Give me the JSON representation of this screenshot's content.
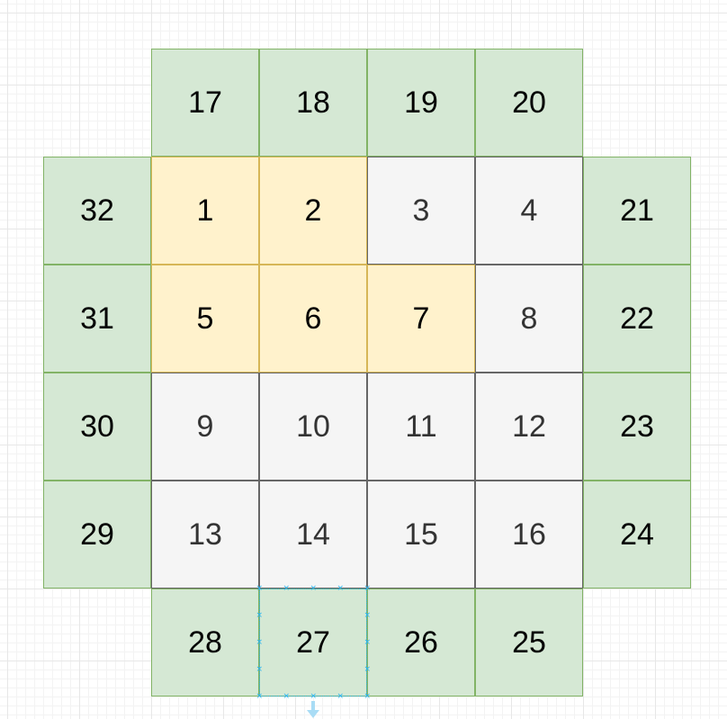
{
  "grid": {
    "cells": [
      {
        "label": "17",
        "kind": "perimeter"
      },
      {
        "label": "18",
        "kind": "perimeter"
      },
      {
        "label": "19",
        "kind": "perimeter"
      },
      {
        "label": "20",
        "kind": "perimeter"
      },
      {
        "label": "32",
        "kind": "perimeter"
      },
      {
        "label": "1",
        "kind": "highlight"
      },
      {
        "label": "2",
        "kind": "highlight"
      },
      {
        "label": "3",
        "kind": "plain"
      },
      {
        "label": "4",
        "kind": "plain"
      },
      {
        "label": "21",
        "kind": "perimeter"
      },
      {
        "label": "31",
        "kind": "perimeter"
      },
      {
        "label": "5",
        "kind": "highlight"
      },
      {
        "label": "6",
        "kind": "highlight"
      },
      {
        "label": "7",
        "kind": "highlight"
      },
      {
        "label": "8",
        "kind": "plain"
      },
      {
        "label": "22",
        "kind": "perimeter"
      },
      {
        "label": "30",
        "kind": "perimeter"
      },
      {
        "label": "9",
        "kind": "plain"
      },
      {
        "label": "10",
        "kind": "plain"
      },
      {
        "label": "11",
        "kind": "plain"
      },
      {
        "label": "12",
        "kind": "plain"
      },
      {
        "label": "23",
        "kind": "perimeter"
      },
      {
        "label": "29",
        "kind": "perimeter"
      },
      {
        "label": "13",
        "kind": "plain"
      },
      {
        "label": "14",
        "kind": "plain"
      },
      {
        "label": "15",
        "kind": "plain"
      },
      {
        "label": "16",
        "kind": "plain"
      },
      {
        "label": "24",
        "kind": "perimeter"
      },
      {
        "label": "28",
        "kind": "perimeter"
      },
      {
        "label": "27",
        "kind": "perimeter",
        "selected": true
      },
      {
        "label": "26",
        "kind": "perimeter"
      },
      {
        "label": "25",
        "kind": "perimeter"
      }
    ]
  },
  "colors": {
    "perimeter_fill": "#d5e8d4",
    "perimeter_stroke": "#82b366",
    "highlight_fill": "#fff2cc",
    "highlight_stroke": "#d6b656",
    "plain_fill": "#f5f5f5",
    "plain_stroke": "#666666",
    "selection": "#29b6f2",
    "grid_line": "#e7e7e7"
  },
  "icons": {
    "selection_handle": "x-handle-icon",
    "connect_arrow": "arrow-down-icon"
  }
}
